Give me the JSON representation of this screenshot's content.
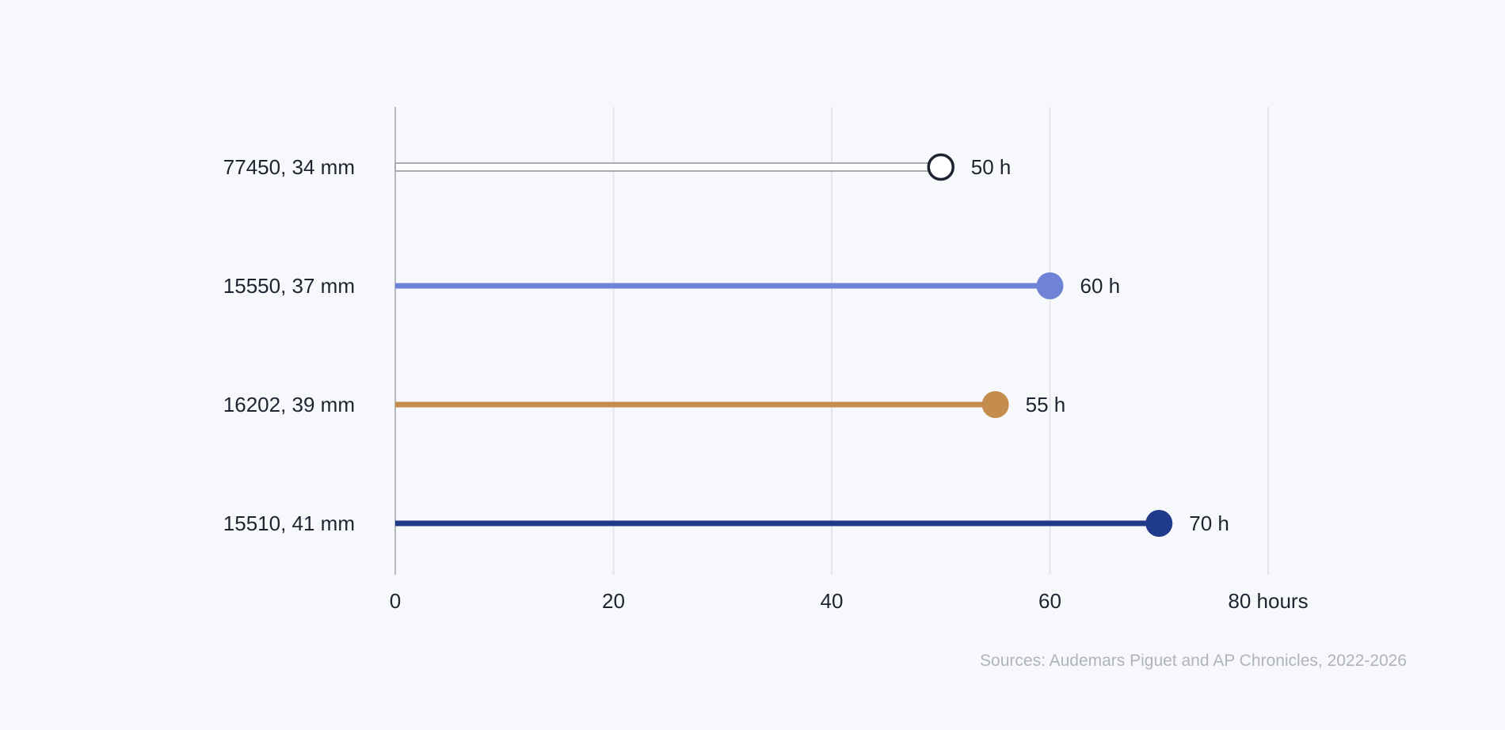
{
  "chart_data": {
    "type": "lollipop",
    "categories": [
      "77450, 34 mm",
      "15550, 37 mm",
      "16202, 39 mm",
      "15510, 41 mm"
    ],
    "values": [
      50,
      60,
      55,
      70
    ],
    "value_labels": [
      "50 h",
      "60 h",
      "55 h",
      "70 h"
    ],
    "colors": [
      "#ffffff",
      "#6f83d6",
      "#c48d4d",
      "#1f3a8a"
    ],
    "styles": [
      "hollow",
      "solid",
      "solid",
      "solid"
    ],
    "xlim": [
      0,
      80
    ],
    "x_ticks": [
      0,
      20,
      40,
      60,
      80
    ],
    "x_tick_labels": [
      "0",
      "20",
      "40",
      "60",
      "80 hours"
    ],
    "grid": true,
    "source": "Sources: Audemars Piguet and AP Chronicles, 2022-2026"
  },
  "colors": {
    "background": "#f7f8fc",
    "grid": "#e3e5ea",
    "axis": "#b7b9bf",
    "text": "#1f2330",
    "muted_text": "#b0b3bb",
    "hollow_stroke": "#1f2330"
  }
}
